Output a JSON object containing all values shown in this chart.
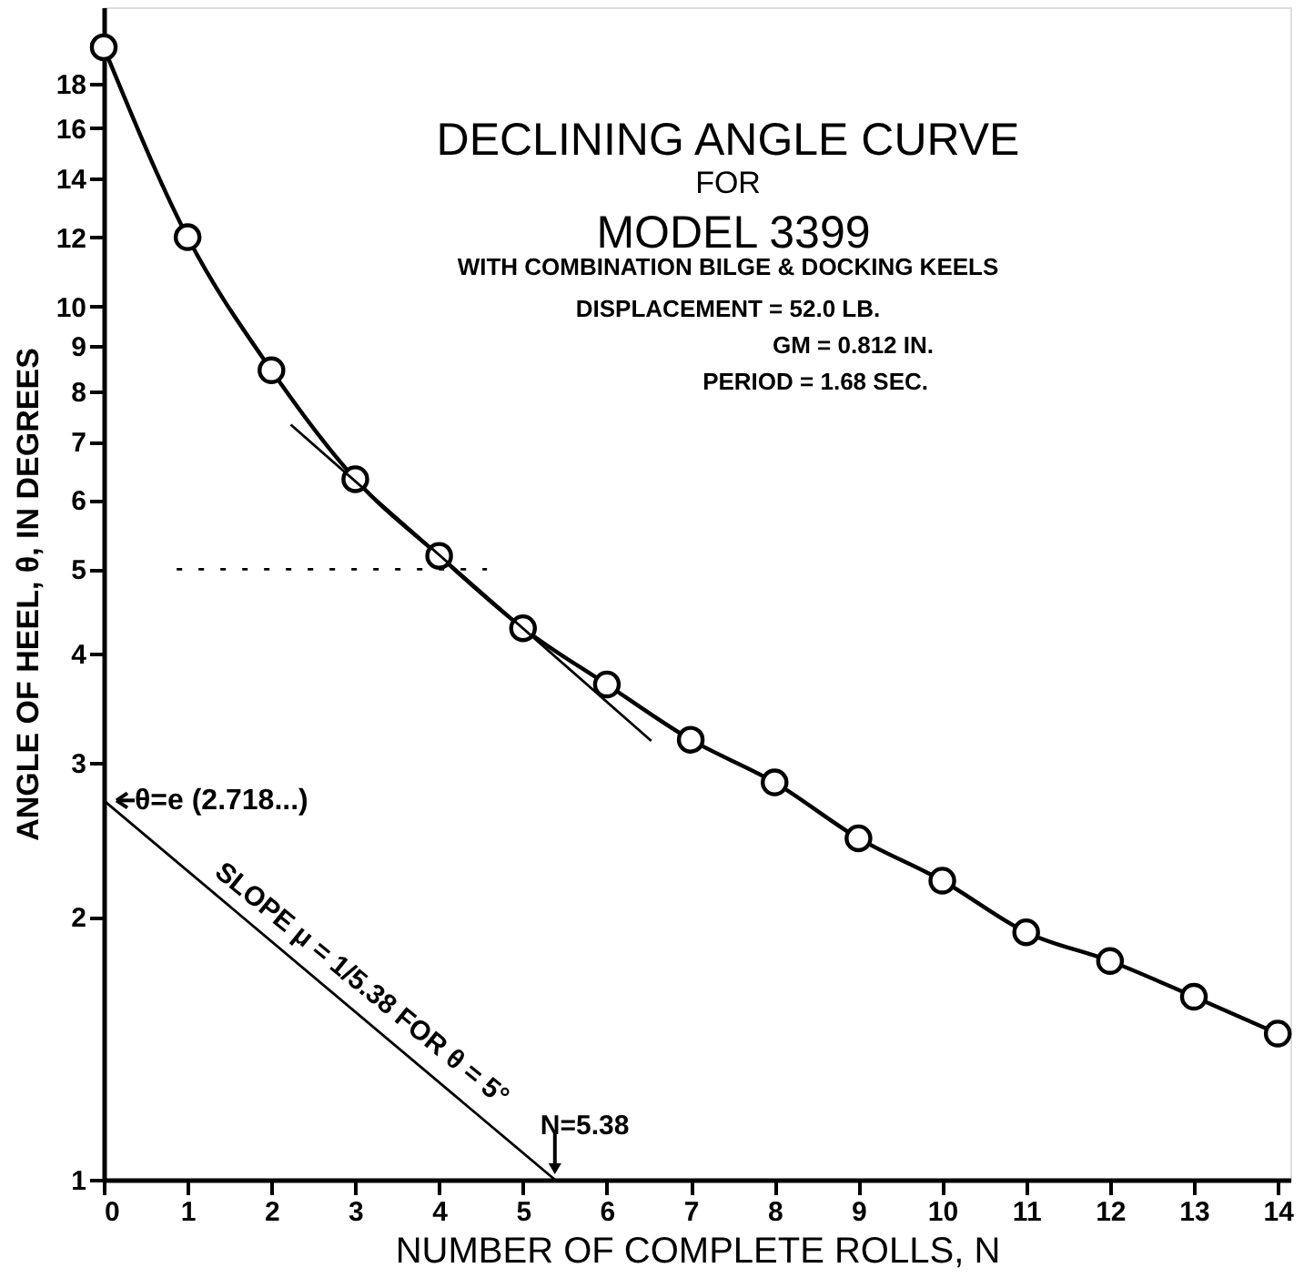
{
  "chart_data": {
    "type": "line",
    "title": "DECLINING ANGLE CURVE",
    "subtitle": "FOR",
    "xlabel": "NUMBER OF COMPLETE ROLLS, N",
    "ylabel": "ANGLE OF HEEL, θ, IN DEGREES",
    "log": "y",
    "grid": false,
    "xlim": [
      0,
      14.15
    ],
    "xticks": [
      0,
      1,
      2,
      3,
      4,
      5,
      6,
      7,
      8,
      9,
      10,
      11,
      12,
      13,
      14
    ],
    "ylim": [
      1,
      22
    ],
    "yticks": [
      1,
      2,
      3,
      4,
      5,
      6,
      7,
      8,
      9,
      10,
      12,
      14,
      16,
      18,
      {
        "value": 20,
        "label": null
      }
    ],
    "series": [
      {
        "type": "line",
        "color": "#000000",
        "marker": "circle",
        "line_style": "solid",
        "x": [
          0,
          1,
          2,
          3,
          4,
          5,
          6,
          7,
          8,
          9,
          10,
          11,
          12,
          13,
          14
        ],
        "values": [
          19.8,
          12.0,
          8.45,
          6.34,
          5.18,
          4.28,
          3.69,
          3.19,
          2.85,
          2.46,
          2.2,
          1.92,
          1.78,
          1.62,
          1.47
        ]
      },
      {
        "type": "line",
        "color": "#000000",
        "marker": "none",
        "line_style": "solid",
        "x": [
          2.23,
          6.53
        ],
        "values": [
          7.32,
          3.18
        ]
      },
      {
        "type": "line",
        "color": "#000000",
        "marker": "none",
        "line_style": "dotted",
        "x": [
          0.87,
          4.57
        ],
        "values": [
          5,
          5
        ]
      },
      {
        "type": "line",
        "color": "#000000",
        "marker": "none",
        "line_style": "solid",
        "x": [
          0,
          5.38
        ],
        "values": [
          2.718,
          1
        ]
      }
    ],
    "annotations": [
      "MODEL 3399",
      "WITH COMBINATION BILGE & DOCKING KEELS",
      "DISPLACEMENT = 52.0 LB.",
      "GM = 0.812 IN.",
      "PERIOD = 1.68 SEC.",
      {
        "text": "θ=e (2.718...)",
        "x": 0,
        "y": 2.718
      },
      {
        "text": "SLOPE μ = 1/5.38 FOR θ = 5°",
        "x": 2.69,
        "y": 1.65
      },
      {
        "text": "N=5.38",
        "x": 5.38,
        "y": 1
      }
    ]
  }
}
